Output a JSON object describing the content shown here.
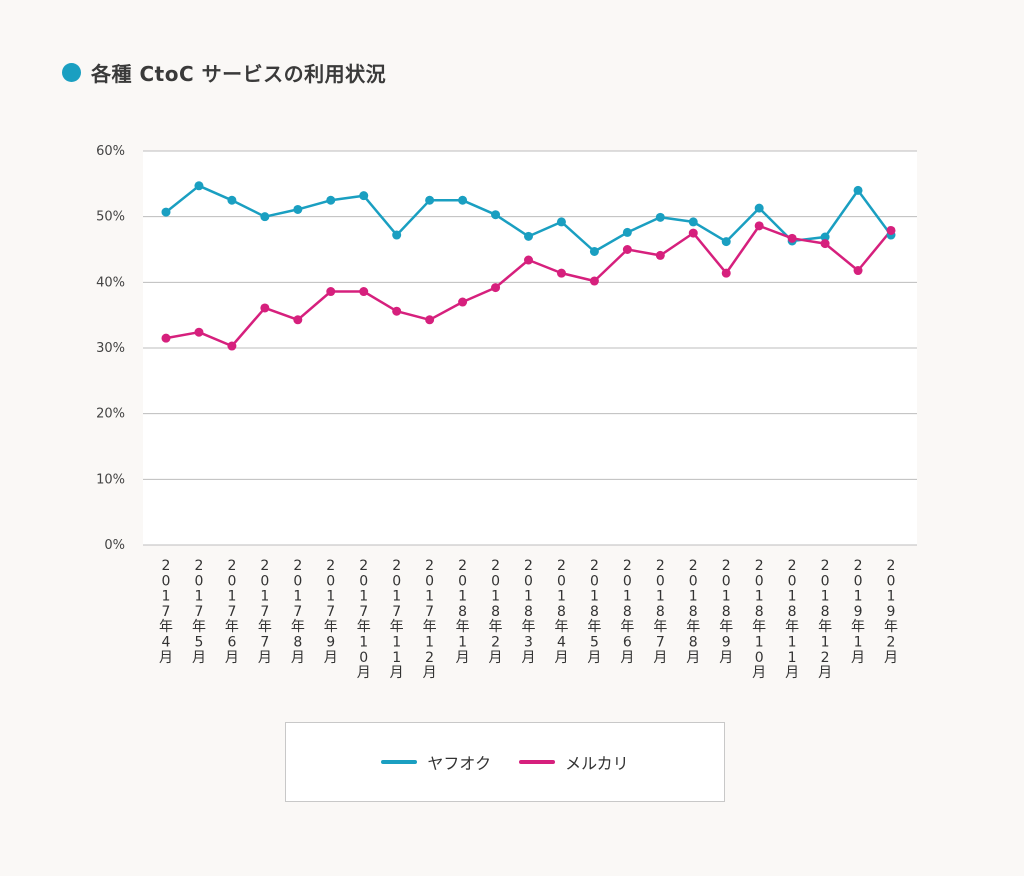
{
  "chart_data": {
    "type": "line",
    "title": "各種 CtoC サービスの利用状況",
    "title_dot_color": "#1a9fc1",
    "xlabel": "",
    "ylabel": "",
    "ylim": [
      0,
      60
    ],
    "yticks": [
      0,
      10,
      20,
      30,
      40,
      50,
      60
    ],
    "ytick_labels": [
      "0%",
      "10%",
      "20%",
      "30%",
      "40%",
      "50%",
      "60%"
    ],
    "grid": true,
    "legend_position": "bottom",
    "categories": [
      "2017年4月",
      "2017年5月",
      "2017年6月",
      "2017年7月",
      "2017年8月",
      "2017年9月",
      "2017年10月",
      "2017年11月",
      "2017年12月",
      "2018年1月",
      "2018年2月",
      "2018年3月",
      "2018年4月",
      "2018年5月",
      "2018年6月",
      "2018年7月",
      "2018年8月",
      "2018年9月",
      "2018年10月",
      "2018年11月",
      "2018年12月",
      "2019年1月",
      "2019年2月"
    ],
    "series": [
      {
        "name": "ヤフオク",
        "color": "#1a9fc1",
        "values": [
          50.7,
          54.7,
          52.5,
          50.0,
          51.1,
          52.5,
          53.2,
          47.2,
          52.5,
          52.5,
          50.3,
          47.0,
          49.2,
          44.7,
          47.6,
          49.9,
          49.2,
          46.2,
          51.3,
          46.3,
          46.9,
          54.0,
          47.2
        ]
      },
      {
        "name": "メルカリ",
        "color": "#d6207d",
        "values": [
          31.5,
          32.4,
          30.3,
          36.1,
          34.3,
          38.6,
          38.6,
          35.6,
          34.3,
          37.0,
          39.2,
          43.4,
          41.4,
          40.2,
          45.0,
          44.1,
          47.5,
          41.4,
          48.6,
          46.7,
          45.9,
          41.8,
          47.9
        ]
      }
    ]
  }
}
